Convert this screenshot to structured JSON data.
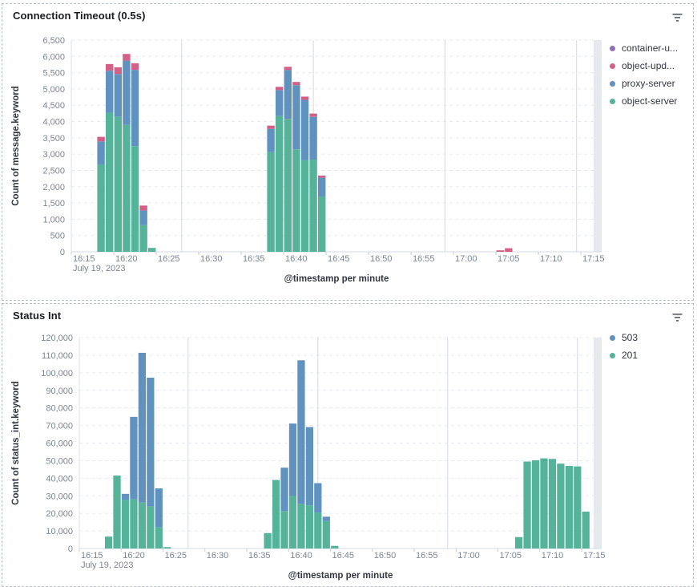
{
  "panels": [
    {
      "title": "Connection Timeout (0.5s)",
      "menu_icon": "filter-lines-icon"
    },
    {
      "title": "Status Int",
      "menu_icon": "filter-lines-icon"
    }
  ],
  "chart_data": [
    {
      "type": "bar",
      "stacked": true,
      "title": "Connection Timeout (0.5s)",
      "xlabel": "@timestamp per minute",
      "ylabel": "Count of message.keyword",
      "ylim": [
        0,
        6500
      ],
      "ytick_step": 500,
      "grid": "horizontal-dashed",
      "legend_position": "right",
      "x_ticks": [
        "16:15",
        "16:20",
        "16:25",
        "16:30",
        "16:35",
        "16:40",
        "16:45",
        "16:50",
        "16:55",
        "17:00",
        "17:05",
        "17:10",
        "17:15"
      ],
      "x_date_label": "July 19, 2023",
      "legend": [
        {
          "label": "container-u...",
          "key": "container_updater",
          "color": "#9170B8"
        },
        {
          "label": "object-upd...",
          "key": "object_updater",
          "color": "#D36086"
        },
        {
          "label": "proxy-server",
          "key": "proxy_server",
          "color": "#6092C0"
        },
        {
          "label": "object-server",
          "key": "object_server",
          "color": "#54B399"
        }
      ],
      "bars": [
        {
          "time": "16:18",
          "object_server": 2685,
          "proxy_server": 705,
          "object_updater": 140,
          "container_updater": 0
        },
        {
          "time": "16:19",
          "object_server": 4270,
          "proxy_server": 1290,
          "object_updater": 205,
          "container_updater": 0
        },
        {
          "time": "16:20",
          "object_server": 4145,
          "proxy_server": 1315,
          "object_updater": 205,
          "container_updater": 0
        },
        {
          "time": "16:21",
          "object_server": 3900,
          "proxy_server": 1970,
          "object_updater": 205,
          "container_updater": 0
        },
        {
          "time": "16:22",
          "object_server": 3245,
          "proxy_server": 2340,
          "object_updater": 205,
          "container_updater": 0
        },
        {
          "time": "16:23",
          "object_server": 820,
          "proxy_server": 450,
          "object_updater": 150,
          "container_updater": 0
        },
        {
          "time": "16:24",
          "object_server": 120,
          "proxy_server": 0,
          "object_updater": 0,
          "container_updater": 0
        },
        {
          "time": "16:38",
          "object_server": 3060,
          "proxy_server": 715,
          "object_updater": 100,
          "container_updater": 0
        },
        {
          "time": "16:39",
          "object_server": 4170,
          "proxy_server": 795,
          "object_updater": 100,
          "container_updater": 0
        },
        {
          "time": "16:40",
          "object_server": 4080,
          "proxy_server": 1500,
          "object_updater": 100,
          "container_updater": 0
        },
        {
          "time": "16:41",
          "object_server": 3145,
          "proxy_server": 1970,
          "object_updater": 100,
          "container_updater": 0
        },
        {
          "time": "16:42",
          "object_server": 2810,
          "proxy_server": 1855,
          "object_updater": 100,
          "container_updater": 0
        },
        {
          "time": "16:43",
          "object_server": 2830,
          "proxy_server": 1315,
          "object_updater": 100,
          "container_updater": 0
        },
        {
          "time": "16:44",
          "object_server": 1700,
          "proxy_server": 575,
          "object_updater": 65,
          "container_updater": 0
        },
        {
          "time": "17:05",
          "object_server": 0,
          "proxy_server": 0,
          "object_updater": 45,
          "container_updater": 0
        },
        {
          "time": "17:06",
          "object_server": 0,
          "proxy_server": 0,
          "object_updater": 110,
          "container_updater": 0
        }
      ]
    },
    {
      "type": "bar",
      "stacked": true,
      "title": "Status Int",
      "xlabel": "@timestamp per minute",
      "ylabel": "Count of status_int.keyword",
      "ylim": [
        0,
        120000
      ],
      "ytick_step": 10000,
      "grid": "horizontal-dashed",
      "legend_position": "right",
      "x_ticks": [
        "16:15",
        "16:20",
        "16:25",
        "16:30",
        "16:35",
        "16:40",
        "16:45",
        "16:50",
        "16:55",
        "17:00",
        "17:05",
        "17:10",
        "17:15"
      ],
      "x_date_label": "July 19, 2023",
      "legend": [
        {
          "label": "503",
          "key": "503",
          "color": "#6092C0"
        },
        {
          "label": "201",
          "key": "201",
          "color": "#54B399"
        }
      ],
      "bars": [
        {
          "time": "16:18",
          "201": 6800,
          "503": 0
        },
        {
          "time": "16:19",
          "201": 41500,
          "503": 0
        },
        {
          "time": "16:20",
          "201": 27650,
          "503": 3450
        },
        {
          "time": "16:21",
          "201": 28100,
          "503": 46800
        },
        {
          "time": "16:22",
          "201": 26100,
          "503": 85250
        },
        {
          "time": "16:23",
          "201": 24000,
          "503": 73200
        },
        {
          "time": "16:24",
          "201": 12150,
          "503": 22050
        },
        {
          "time": "16:25",
          "201": 800,
          "503": 0
        },
        {
          "time": "16:37",
          "201": 8800,
          "503": 0
        },
        {
          "time": "16:38",
          "201": 39000,
          "503": 0
        },
        {
          "time": "16:39",
          "201": 21300,
          "503": 24700
        },
        {
          "time": "16:40",
          "201": 29900,
          "503": 41200
        },
        {
          "time": "16:41",
          "201": 25400,
          "503": 81700
        },
        {
          "time": "16:42",
          "201": 24600,
          "503": 44500
        },
        {
          "time": "16:43",
          "201": 20500,
          "503": 16700
        },
        {
          "time": "16:44",
          "201": 15600,
          "503": 2500
        },
        {
          "time": "16:45",
          "201": 1500,
          "503": 0
        },
        {
          "time": "17:07",
          "201": 6500,
          "503": 0
        },
        {
          "time": "17:08",
          "201": 49500,
          "503": 0
        },
        {
          "time": "17:09",
          "201": 50200,
          "503": 0
        },
        {
          "time": "17:10",
          "201": 51300,
          "503": 0
        },
        {
          "time": "17:11",
          "201": 51000,
          "503": 0
        },
        {
          "time": "17:12",
          "201": 48300,
          "503": 0
        },
        {
          "time": "17:13",
          "201": 47000,
          "503": 0
        },
        {
          "time": "17:14",
          "201": 46700,
          "503": 0
        },
        {
          "time": "17:15",
          "201": 21000,
          "503": 0
        }
      ]
    }
  ]
}
